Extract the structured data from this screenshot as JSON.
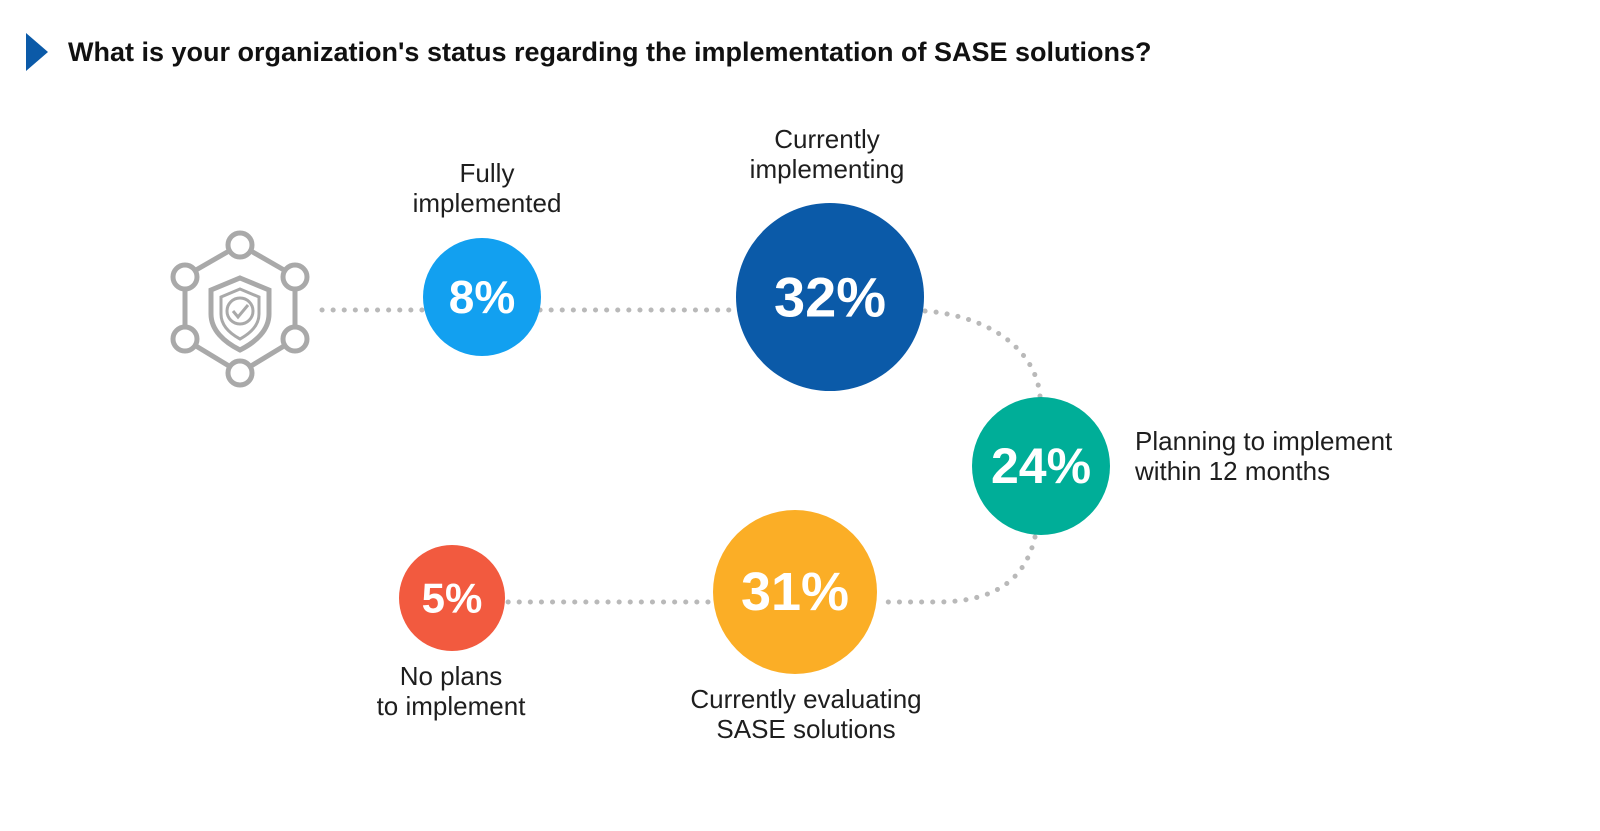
{
  "title": "What is your organization's status regarding the implementation of SASE solutions?",
  "accent_color": "#0b5aa8",
  "icon": "shield-network-icon",
  "chart_data": {
    "type": "bubble",
    "unit": "%",
    "items": [
      {
        "label_lines": [
          "Fully",
          "implemented"
        ],
        "value": 8,
        "display": "8%",
        "color": "#12a0f0"
      },
      {
        "label_lines": [
          "Currently",
          "implementing"
        ],
        "value": 32,
        "display": "32%",
        "color": "#0b5aa8"
      },
      {
        "label_lines": [
          "Planning to implement",
          "within 12 months"
        ],
        "value": 24,
        "display": "24%",
        "color": "#00ae98"
      },
      {
        "label_lines": [
          "Currently evaluating",
          "SASE solutions"
        ],
        "value": 31,
        "display": "31%",
        "color": "#fbae26"
      },
      {
        "label_lines": [
          "No plans",
          "to implement"
        ],
        "value": 5,
        "display": "5%",
        "color": "#f25a3f"
      }
    ]
  }
}
